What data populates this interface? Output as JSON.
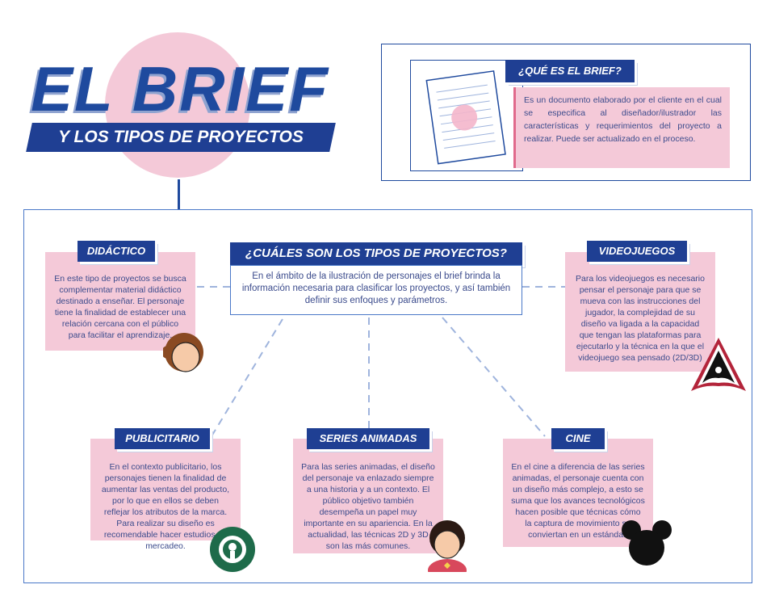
{
  "title": {
    "main": "EL BRIEF",
    "subtitle": "Y LOS TIPOS DE PROYECTOS"
  },
  "definition": {
    "heading": "¿QUÉ ES EL BRIEF?",
    "text": "Es un documento elaborado por el cliente en el cual se especifica al diseñador/ilustrador las características y requerimientos del proyecto a realizar. Puede ser actualizado en el proceso."
  },
  "types": {
    "heading": "¿CUÁLES SON LOS TIPOS DE PROYECTOS?",
    "intro": "En el ámbito de la ilustración de personajes el brief brinda la información necesaria para clasificar los proyectos, y así también definir sus enfoques y parámetros."
  },
  "cards": {
    "didactico": {
      "label": "DIDÁCTICO",
      "text": "En este tipo de proyectos se busca complementar material didáctico destinado a enseñar. El personaje tiene la finalidad de establecer una relación cercana con el público para facilitar el aprendizaje.",
      "icon": "monkey-face-icon"
    },
    "videojuegos": {
      "label": "VIDEOJUEGOS",
      "text": "Para los videojuegos es necesario pensar el personaje para que se mueva con las instrucciones del jugador, la complejidad de su diseño va ligada a la capacidad que tengan las plataformas para ejecutarlo y la técnica en la que el videojuego sea pensado (2D/3D)",
      "icon": "assassin-emblem-icon"
    },
    "publicitario": {
      "label": "PUBLICITARIO",
      "text": "En el contexto publicitario, los personajes tienen la finalidad de aumentar las ventas del producto, por lo que en ellos se deben reflejar los atributos de la marca. Para realizar su diseño es recomendable hacer estudios de mercadeo.",
      "icon": "coffee-siren-logo-icon"
    },
    "series": {
      "label": "SERIES ANIMADAS",
      "text": "Para las series animadas, el diseño del personaje va enlazado siempre a una historia y a un contexto. El público objetivo también desempeña un papel muy importante en su apariencia. En la actualidad, las técnicas 2D y 3D son las más comunes.",
      "icon": "cartoon-boy-icon"
    },
    "cine": {
      "label": "CINE",
      "text": "En el cine a diferencia de las series animadas, el personaje cuenta con un diseño más complejo, a esto se suma que los avances tecnológicos hacen posible que técnicas cómo la captura  de movimiento se conviertan en un estándar.",
      "icon": "mouse-ears-icon"
    }
  },
  "colors": {
    "navy": "#1f3f93",
    "pink": "#f4c9d8",
    "accent_pink": "#e06a8c",
    "panel_border": "#4a78c8"
  }
}
